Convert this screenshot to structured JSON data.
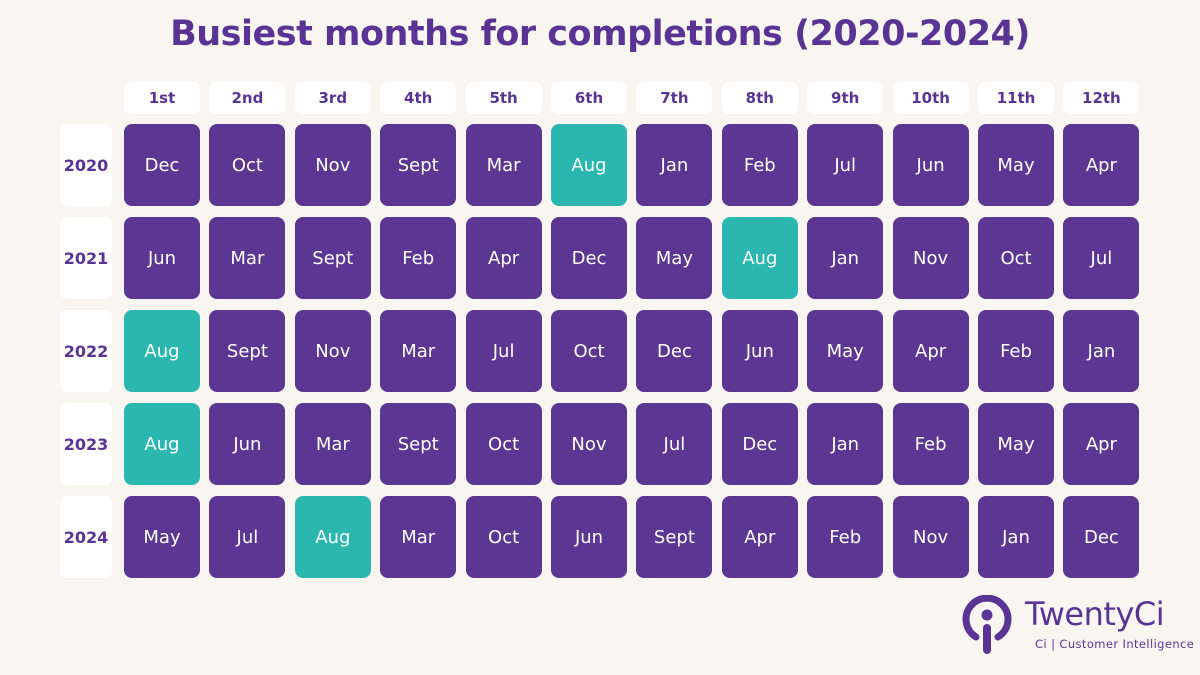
{
  "title": "Busiest months for completions (2020-2024)",
  "colors": {
    "purple": "#5b3793",
    "teal": "#2bb7b0",
    "background": "#f9f6f2"
  },
  "chart_data": {
    "type": "table",
    "title": "Busiest months for completions (2020-2024)",
    "columns": [
      "1st",
      "2nd",
      "3rd",
      "4th",
      "5th",
      "6th",
      "7th",
      "8th",
      "9th",
      "10th",
      "11th",
      "12th"
    ],
    "rows": [
      {
        "year": "2020",
        "months": [
          "Dec",
          "Oct",
          "Nov",
          "Sept",
          "Mar",
          "Aug",
          "Jan",
          "Feb",
          "Jul",
          "Jun",
          "May",
          "Apr"
        ]
      },
      {
        "year": "2021",
        "months": [
          "Jun",
          "Mar",
          "Sept",
          "Feb",
          "Apr",
          "Dec",
          "May",
          "Aug",
          "Jan",
          "Nov",
          "Oct",
          "Jul"
        ]
      },
      {
        "year": "2022",
        "months": [
          "Aug",
          "Sept",
          "Nov",
          "Mar",
          "Jul",
          "Oct",
          "Dec",
          "Jun",
          "May",
          "Apr",
          "Feb",
          "Jan"
        ]
      },
      {
        "year": "2023",
        "months": [
          "Aug",
          "Jun",
          "Mar",
          "Sept",
          "Oct",
          "Nov",
          "Jul",
          "Dec",
          "Jan",
          "Feb",
          "May",
          "Apr"
        ]
      },
      {
        "year": "2024",
        "months": [
          "May",
          "Jul",
          "Aug",
          "Mar",
          "Oct",
          "Jun",
          "Sept",
          "Apr",
          "Feb",
          "Nov",
          "Jan",
          "Dec"
        ]
      }
    ],
    "highlight_month": "Aug",
    "highlight_color": "#2bb7b0",
    "cell_color": "#5b3793"
  },
  "logo": {
    "name": "TwentyCi",
    "tagline": "Ci | Customer Intelligence"
  }
}
